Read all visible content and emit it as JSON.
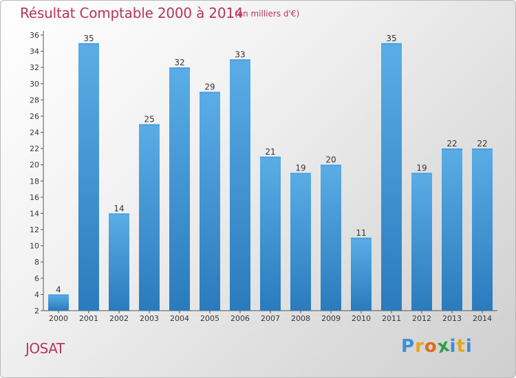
{
  "header": {
    "title": "Résultat Comptable 2000 à 2014",
    "subtitle": "(en milliers d'€)"
  },
  "footer": {
    "commune": "JOSAT",
    "logo_letters": [
      "P",
      "r",
      "o",
      "x",
      "i",
      "t",
      "i"
    ],
    "logo_colors": [
      "#3a8fd6",
      "#e8a51c",
      "#e06c1c",
      "#2f9e44",
      "#3a8fd6",
      "#e8a51c",
      "#3a8fd6"
    ]
  },
  "colors": {
    "bar_light": "#5aade6",
    "bar_dark": "#2a7bbd",
    "text": "#333333",
    "accent": "#b5355f"
  },
  "chart_data": {
    "type": "bar",
    "title": "Résultat Comptable 2000 à 2014",
    "subtitle": "(en milliers d'€)",
    "categories": [
      "2000",
      "2001",
      "2002",
      "2003",
      "2004",
      "2005",
      "2006",
      "2007",
      "2008",
      "2009",
      "2010",
      "2011",
      "2012",
      "2013",
      "2014"
    ],
    "values": [
      4,
      35,
      14,
      25,
      32,
      29,
      33,
      21,
      19,
      20,
      11,
      35,
      19,
      22,
      22
    ],
    "ylim": [
      2,
      36
    ],
    "yticks": [
      2,
      4,
      6,
      8,
      10,
      12,
      14,
      16,
      18,
      20,
      22,
      24,
      26,
      28,
      30,
      32,
      34,
      36
    ],
    "grid": false,
    "data_labels": true
  }
}
